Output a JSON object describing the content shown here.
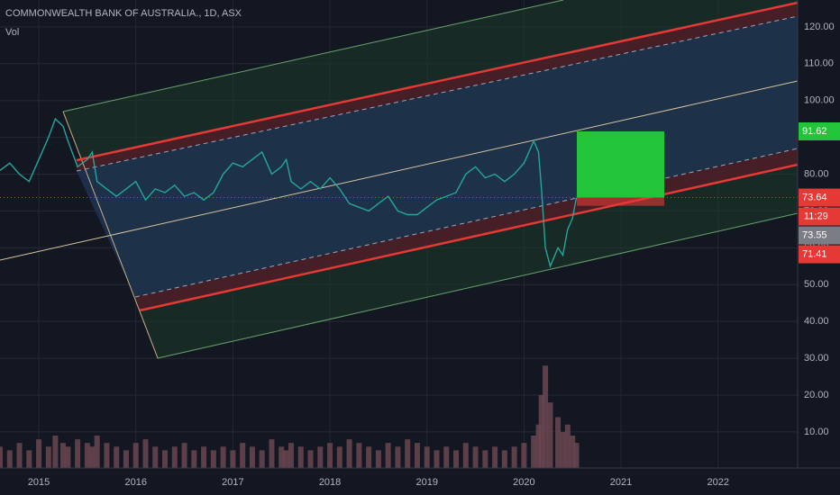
{
  "chart_data": {
    "type": "line",
    "title": "COMMONWEALTH BANK OF AUSTRALIA., 1D, ASX",
    "color": "#26a69a",
    "x": [
      2014.6,
      2014.7,
      2014.8,
      2014.9,
      2015.0,
      2015.1,
      2015.17,
      2015.25,
      2015.3,
      2015.4,
      2015.5,
      2015.55,
      2015.6,
      2015.7,
      2015.8,
      2015.9,
      2016.0,
      2016.1,
      2016.2,
      2016.3,
      2016.4,
      2016.5,
      2016.6,
      2016.7,
      2016.8,
      2016.9,
      2017.0,
      2017.1,
      2017.2,
      2017.3,
      2017.4,
      2017.5,
      2017.55,
      2017.6,
      2017.7,
      2017.8,
      2017.9,
      2018.0,
      2018.1,
      2018.2,
      2018.3,
      2018.4,
      2018.5,
      2018.6,
      2018.7,
      2018.8,
      2018.9,
      2019.0,
      2019.1,
      2019.2,
      2019.3,
      2019.4,
      2019.5,
      2019.6,
      2019.7,
      2019.8,
      2019.9,
      2020.0,
      2020.1,
      2020.15,
      2020.18,
      2020.22,
      2020.27,
      2020.35,
      2020.4,
      2020.45,
      2020.5,
      2020.54
    ],
    "values": [
      81,
      83,
      80,
      78,
      84,
      90,
      95,
      93,
      89,
      82,
      84,
      86,
      78,
      76,
      74,
      76,
      78,
      73,
      76,
      75,
      77,
      74,
      75,
      73,
      75,
      80,
      83,
      82,
      84,
      86,
      80,
      82,
      84,
      78,
      76,
      78,
      76,
      79,
      76,
      72,
      71,
      70,
      72,
      74,
      70,
      69,
      69,
      71,
      73,
      74,
      75,
      80,
      82,
      79,
      80,
      78,
      80,
      83,
      89,
      86,
      76,
      60,
      55,
      60,
      58,
      65,
      68,
      73.64
    ],
    "volume": {
      "name": "Vol",
      "color": "#6b4650",
      "values": [
        6,
        5,
        7,
        5,
        8,
        6,
        9,
        7,
        6,
        8,
        7,
        6,
        9,
        7,
        6,
        5,
        7,
        8,
        6,
        5,
        6,
        7,
        5,
        6,
        5,
        6,
        5,
        7,
        6,
        5,
        8,
        6,
        5,
        7,
        6,
        5,
        6,
        7,
        6,
        8,
        7,
        6,
        5,
        7,
        6,
        8,
        7,
        6,
        5,
        6,
        5,
        7,
        6,
        5,
        6,
        5,
        6,
        7,
        9,
        12,
        20,
        28,
        18,
        14,
        10,
        12,
        9,
        7
      ]
    },
    "markers": [
      {
        "value": 91.62,
        "color": "#22c43a"
      },
      {
        "value": 73.64,
        "color": "#e53935"
      },
      {
        "value": 73.55,
        "color": "#7a7d86"
      },
      {
        "value": 71.41,
        "color": "#e53935"
      }
    ],
    "countdown": "11:29",
    "xlim": [
      2014.6,
      2022.82
    ],
    "xticks": [
      2015,
      2016,
      2017,
      2018,
      2019,
      2020,
      2021,
      2022
    ],
    "ylim": [
      0.2,
      127.3
    ],
    "yticks": [
      {
        "value": 10,
        "label": "10.00"
      },
      {
        "value": 20,
        "label": "20.00"
      },
      {
        "value": 30,
        "label": "30.00"
      },
      {
        "value": 40,
        "label": "40.00"
      },
      {
        "value": 50,
        "label": "50.00"
      },
      {
        "value": 60,
        "label": "60.00"
      },
      {
        "value": 70,
        "label": "70.00"
      },
      {
        "value": 80,
        "label": "80.00"
      },
      {
        "value": 90,
        "label": "90.00"
      },
      {
        "value": 100,
        "label": "100.00"
      },
      {
        "value": 110,
        "label": "110.00"
      },
      {
        "value": 120,
        "label": "120.00"
      }
    ],
    "grid": true
  }
}
